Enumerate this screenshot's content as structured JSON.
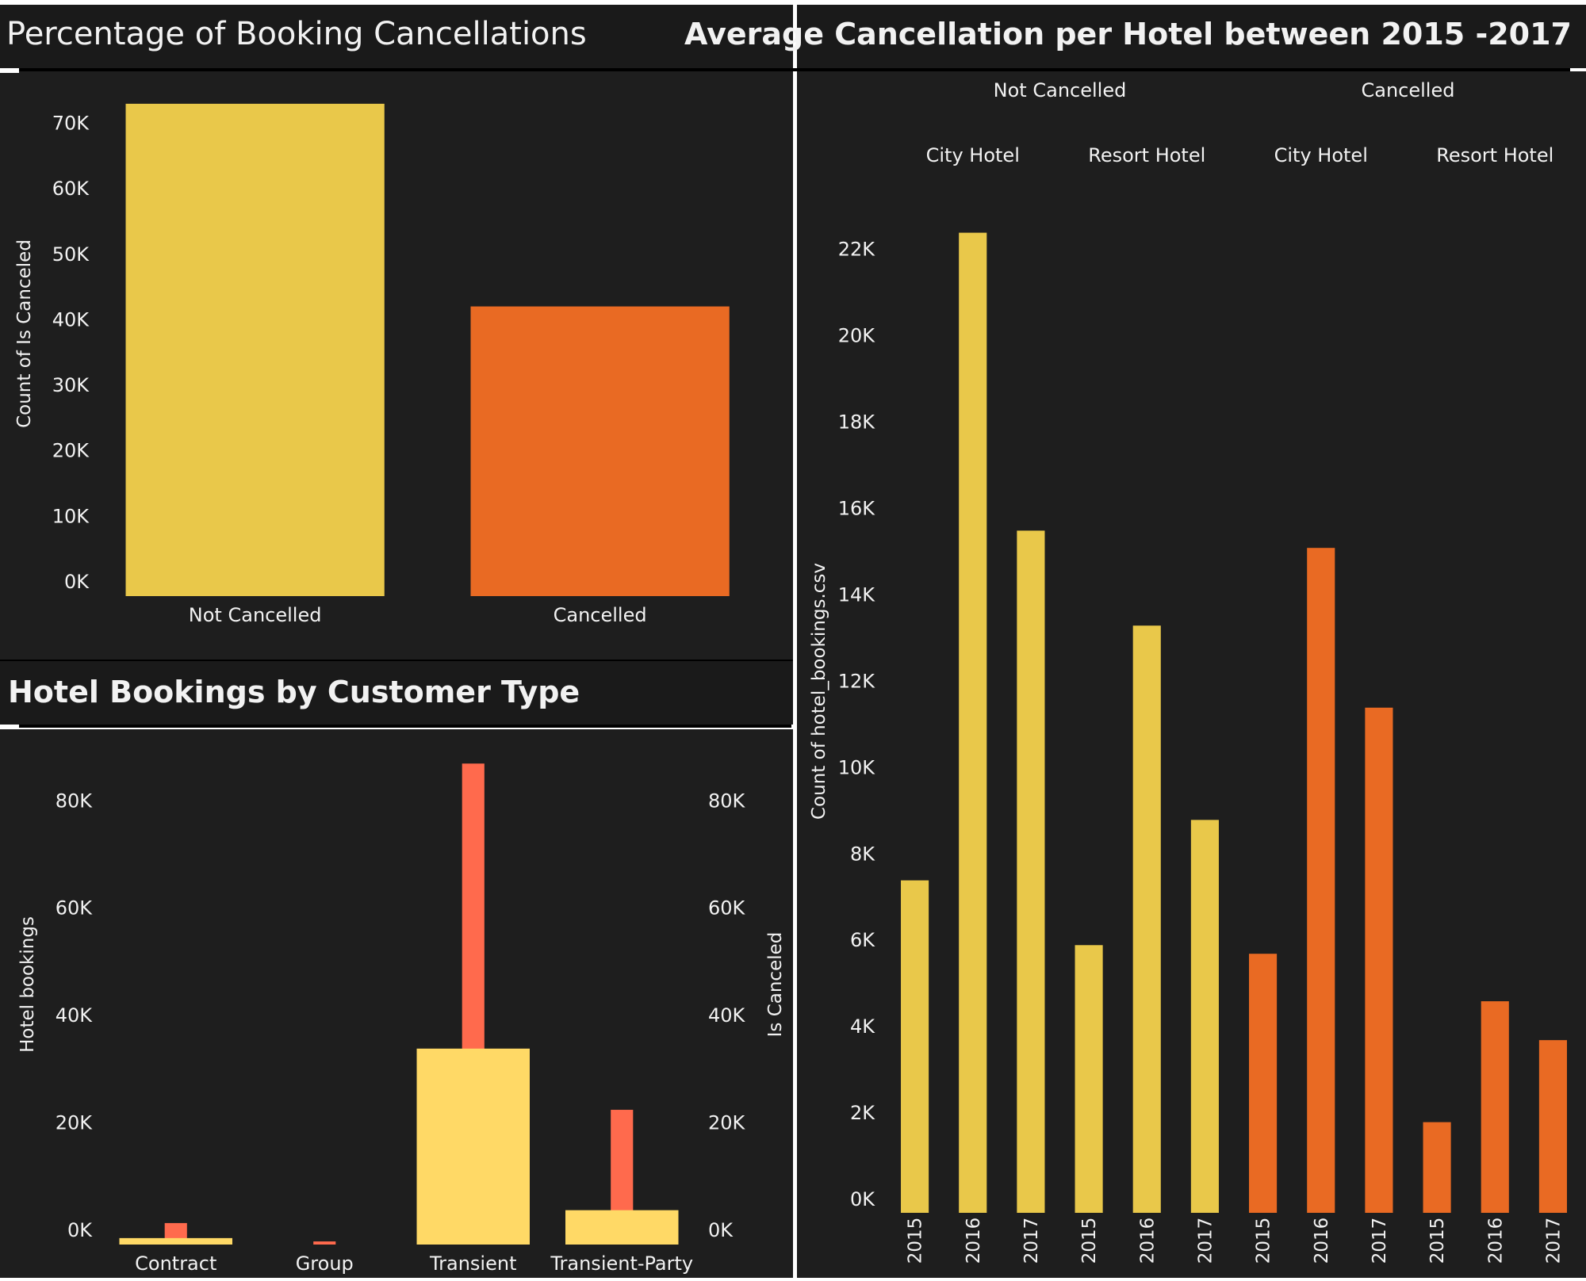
{
  "dashboard": {
    "colors": {
      "background": "#1e1e1e",
      "title_bar": "#1a1a1a",
      "text": "#f2f2f2",
      "not_cancelled": "#e9c84a",
      "cancelled": "#e96a23",
      "hotel_bookings": "#ffd966",
      "is_canceled": "#ff6a4d"
    }
  },
  "panels": {
    "cancellations": {
      "title": "Percentage of Booking Cancellations"
    },
    "customer_type": {
      "title": "Hotel Bookings by Customer Type"
    },
    "per_hotel": {
      "title": "Average Cancellation per Hotel between 2015 -2017"
    }
  },
  "chart_data": [
    {
      "id": "cancellations",
      "type": "bar",
      "categories": [
        "Not Cancelled",
        "Cancelled"
      ],
      "values": [
        75166,
        44224
      ],
      "colors": [
        "#e9c84a",
        "#e96a23"
      ],
      "xlabel": "",
      "ylabel": "Count of Is Canceled",
      "ylim": [
        0,
        76000
      ],
      "yticks": [
        0,
        10000,
        20000,
        30000,
        40000,
        50000,
        60000,
        70000
      ],
      "ytick_labels": [
        "0K",
        "10K",
        "20K",
        "30K",
        "40K",
        "50K",
        "60K",
        "70K"
      ],
      "grid": false
    },
    {
      "id": "customer_type",
      "type": "bar",
      "categories": [
        "Contract",
        "Group",
        "Transient",
        "Transient-Party"
      ],
      "series": [
        {
          "name": "Hotel bookings",
          "values": [
            1200,
            0,
            36500,
            6400
          ],
          "color": "#ffd966"
        },
        {
          "name": "Is Canceled",
          "values": [
            4000,
            577,
            89600,
            25100
          ],
          "color": "#ff6a4d"
        }
      ],
      "ylabel": "Hotel bookings",
      "ylabel_right": "Is Canceled",
      "ylim": [
        0,
        92000
      ],
      "yticks": [
        0,
        20000,
        40000,
        60000,
        80000
      ],
      "ytick_labels": [
        "0K",
        "20K",
        "40K",
        "60K",
        "80K"
      ],
      "grid": false
    },
    {
      "id": "per_hotel",
      "type": "bar",
      "groups": [
        {
          "status": "Not Cancelled",
          "hotels": [
            "City Hotel",
            "Resort Hotel"
          ]
        },
        {
          "status": "Cancelled",
          "hotels": [
            "City Hotel",
            "Resort Hotel"
          ]
        }
      ],
      "x": [
        "2015",
        "2016",
        "2017",
        "2015",
        "2016",
        "2017",
        "2015",
        "2016",
        "2017",
        "2015",
        "2016",
        "2017"
      ],
      "values": [
        7700,
        22700,
        15800,
        6200,
        13600,
        9100,
        6000,
        15400,
        11700,
        2100,
        4900,
        4000
      ],
      "colors": [
        "#e9c84a",
        "#e9c84a",
        "#e9c84a",
        "#e9c84a",
        "#e9c84a",
        "#e9c84a",
        "#e96a23",
        "#e96a23",
        "#e96a23",
        "#e96a23",
        "#e96a23",
        "#e96a23"
      ],
      "ylabel": "Count of hotel_bookings.csv",
      "ylim": [
        0,
        23500
      ],
      "yticks": [
        0,
        2000,
        4000,
        6000,
        8000,
        10000,
        12000,
        14000,
        16000,
        18000,
        20000,
        22000
      ],
      "ytick_labels": [
        "0K",
        "2K",
        "4K",
        "6K",
        "8K",
        "10K",
        "12K",
        "14K",
        "16K",
        "18K",
        "20K",
        "22K"
      ],
      "grid": false
    }
  ]
}
